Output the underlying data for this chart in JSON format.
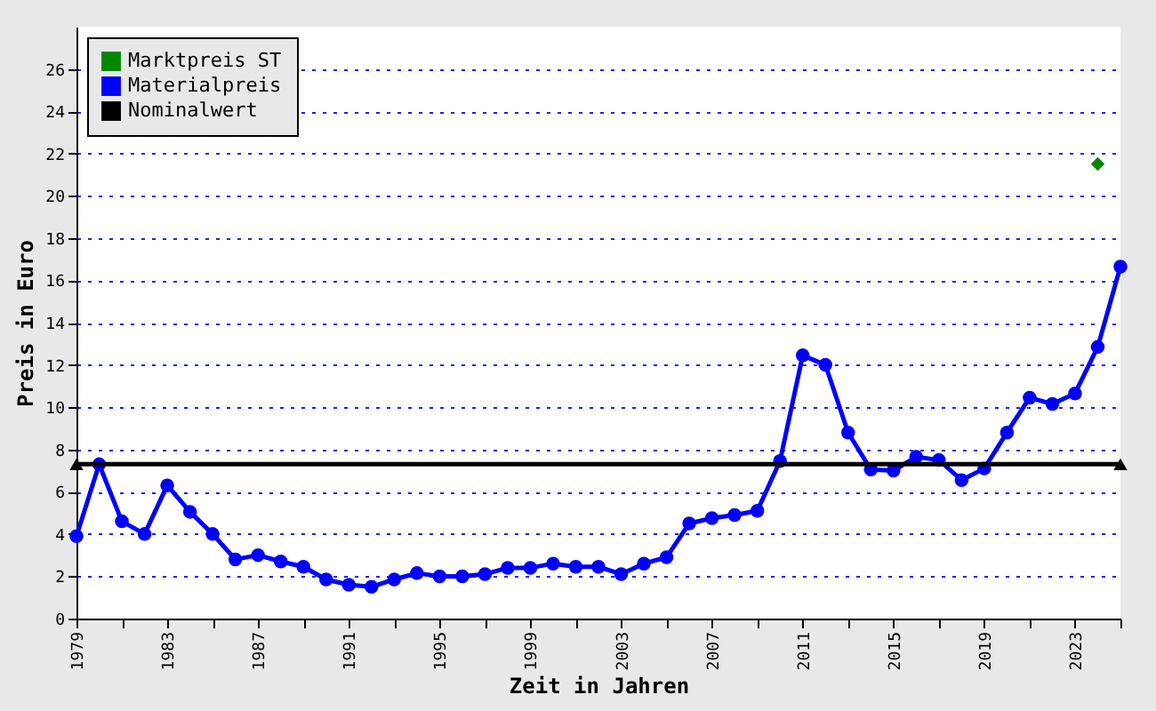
{
  "chart_data": {
    "type": "line",
    "xlabel": "Zeit in Jahren",
    "ylabel": "Preis in Euro",
    "xlim": [
      1979,
      2025
    ],
    "ylim": [
      0,
      28
    ],
    "xticks": [
      1979,
      {
        "value": 1981,
        "label": null
      },
      1983,
      {
        "value": 1985,
        "label": null
      },
      1987,
      {
        "value": 1989,
        "label": null
      },
      1991,
      {
        "value": 1993,
        "label": null
      },
      1995,
      {
        "value": 1997,
        "label": null
      },
      1999,
      {
        "value": 2001,
        "label": null
      },
      2003,
      {
        "value": 2005,
        "label": null
      },
      2007,
      {
        "value": 2009,
        "label": null
      },
      2011,
      {
        "value": 2013,
        "label": null
      },
      2015,
      {
        "value": 2017,
        "label": null
      },
      2019,
      {
        "value": 2021,
        "label": null
      },
      2023,
      {
        "value": 2025,
        "label": null
      }
    ],
    "yticks": [
      0,
      2,
      4,
      6,
      8,
      10,
      12,
      14,
      16,
      18,
      20,
      22,
      24,
      26
    ],
    "grid": "y",
    "legend": "top left",
    "series": [
      {
        "name": "Marktpreis ST",
        "type": "scatter",
        "marker": "diamond",
        "color": "#008800",
        "x": [
          2024
        ],
        "values": [
          21.5
        ]
      },
      {
        "name": "Materialpreis",
        "marker": "circle",
        "line_style": "solid",
        "color": "#0000ff",
        "x": [
          1979,
          1980,
          1981,
          1982,
          1983,
          1984,
          1985,
          1986,
          1987,
          1988,
          1989,
          1990,
          1991,
          1992,
          1993,
          1994,
          1995,
          1996,
          1997,
          1998,
          1999,
          2000,
          2001,
          2002,
          2003,
          2004,
          2005,
          2006,
          2007,
          2008,
          2009,
          2010,
          2011,
          2012,
          2013,
          2014,
          2015,
          2016,
          2017,
          2018,
          2019,
          2020,
          2021,
          2022,
          2023,
          2024,
          2025
        ],
        "values": [
          3.9,
          7.3,
          4.6,
          4.0,
          6.3,
          5.05,
          4.0,
          2.8,
          3.0,
          2.7,
          2.45,
          1.85,
          1.6,
          1.5,
          1.85,
          2.15,
          2.0,
          2.0,
          2.1,
          2.4,
          2.4,
          2.6,
          2.45,
          2.45,
          2.1,
          2.6,
          2.9,
          4.5,
          4.75,
          4.9,
          5.1,
          7.45,
          12.45,
          12.0,
          8.8,
          7.05,
          7.0,
          7.65,
          7.5,
          6.55,
          7.1,
          8.8,
          10.45,
          10.15,
          10.65,
          12.85,
          16.65
        ]
      },
      {
        "name": "Nominalwert",
        "marker": "triangle",
        "line_style": "solid",
        "color": "#000000",
        "x": [
          1979,
          2025
        ],
        "values": [
          7.3,
          7.3
        ]
      }
    ]
  }
}
